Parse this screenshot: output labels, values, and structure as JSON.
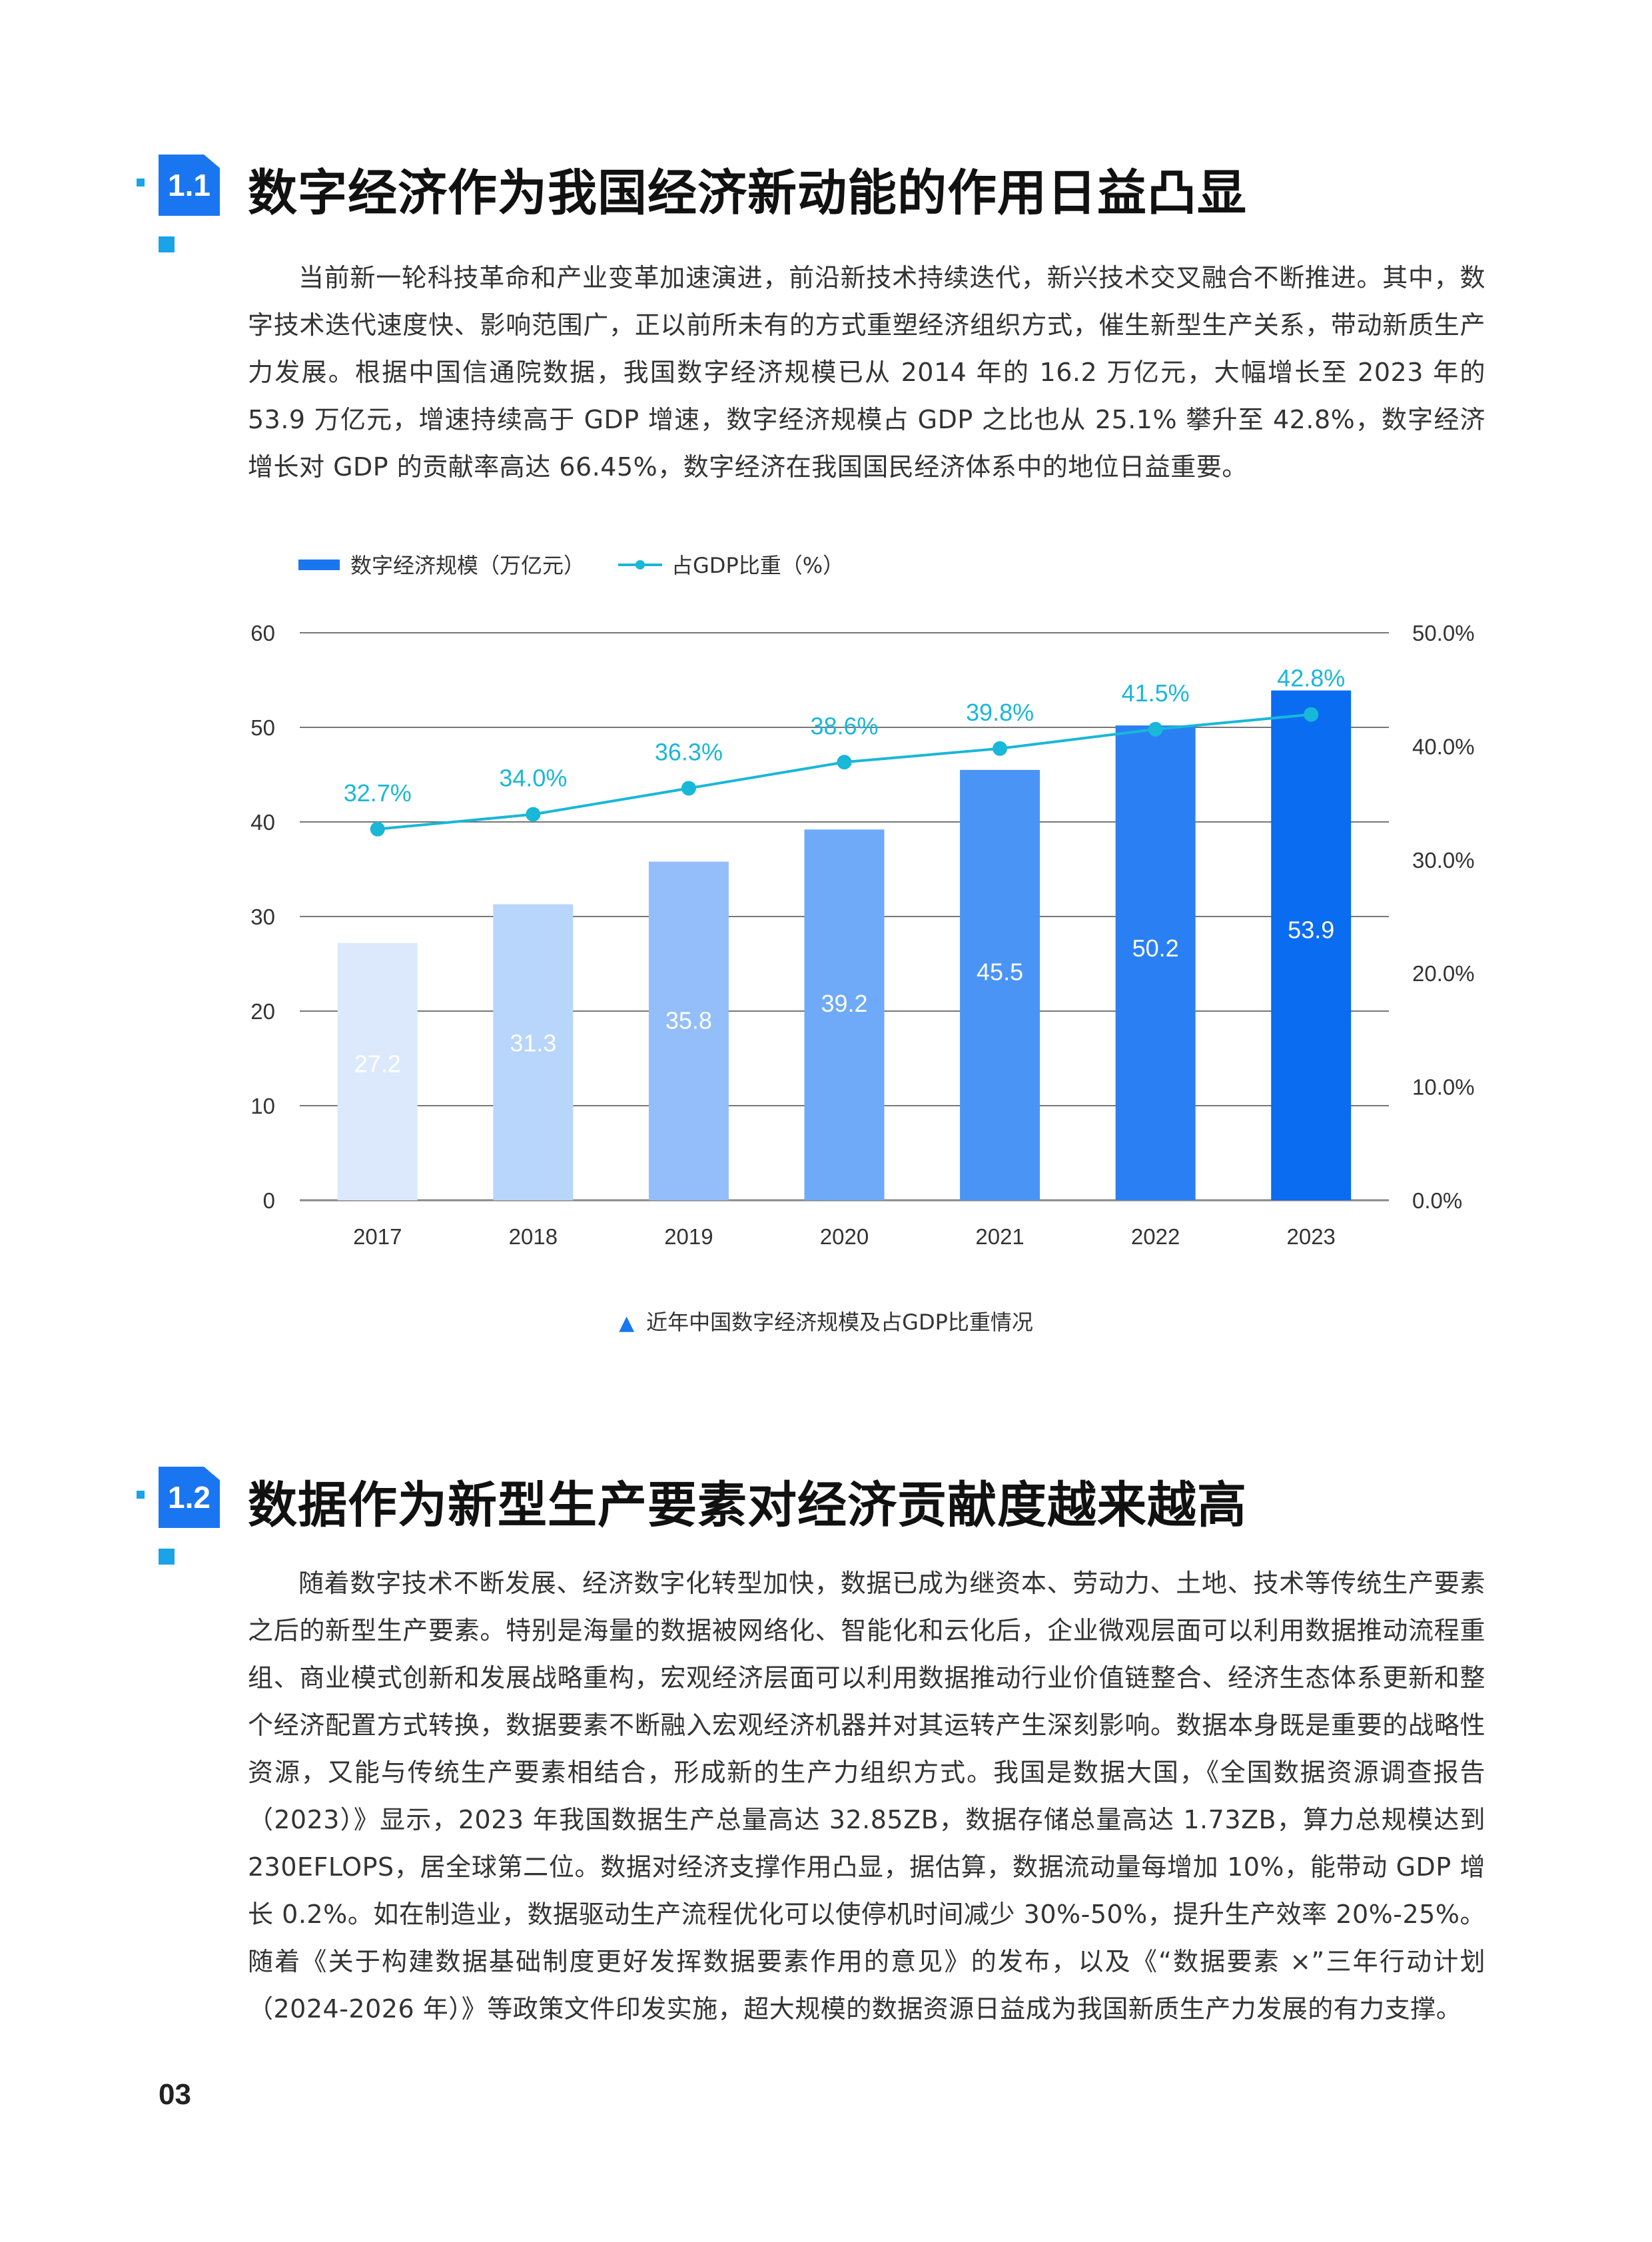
{
  "sections": [
    {
      "number": "1.1",
      "title": "数字经济作为我国经济新动能的作用日益凸显",
      "paragraph": "当前新一轮科技革命和产业变革加速演进，前沿新技术持续迭代，新兴技术交叉融合不断推进。其中，数字技术迭代速度快、影响范围广，正以前所未有的方式重塑经济组织方式，催生新型生产关系，带动新质生产力发展。根据中国信通院数据，我国数字经济规模已从 2014 年的 16.2 万亿元，大幅增长至 2023 年的 53.9 万亿元，增速持续高于 GDP 增速，数字经济规模占 GDP 之比也从 25.1% 攀升至 42.8%，数字经济增长对 GDP 的贡献率高达 66.45%，数字经济在我国国民经济体系中的地位日益重要。"
    },
    {
      "number": "1.2",
      "title": "数据作为新型生产要素对经济贡献度越来越高",
      "paragraph": "随着数字技术不断发展、经济数字化转型加快，数据已成为继资本、劳动力、土地、技术等传统生产要素之后的新型生产要素。特别是海量的数据被网络化、智能化和云化后，企业微观层面可以利用数据推动流程重组、商业模式创新和发展战略重构，宏观经济层面可以利用数据推动行业价值链整合、经济生态体系更新和整个经济配置方式转换，数据要素不断融入宏观经济机器并对其运转产生深刻影响。数据本身既是重要的战略性资源，又能与传统生产要素相结合，形成新的生产力组织方式。我国是数据大国，《全国数据资源调查报告（2023）》显示，2023 年我国数据生产总量高达 32.85ZB，数据存储总量高达 1.73ZB，算力总规模达到 230EFLOPS，居全球第二位。数据对经济支撑作用凸显，据估算，数据流动量每增加 10%，能带动 GDP 增长 0.2%。如在制造业，数据驱动生产流程优化可以使停机时间减少 30%-50%，提升生产效率 20%-25%。随着《关于构建数据基础制度更好发挥数据要素作用的意见》的发布，以及《“数据要素 ×”三年行动计划（2024-2026 年）》等政策文件印发实施，超大规模的数据资源日益成为我国新质生产力发展的有力支撑。"
    }
  ],
  "chart_caption": "近年中国数字经济规模及占GDP比重情况",
  "page_number": "03",
  "chart_data": {
    "type": "bar",
    "categories": [
      "2017",
      "2018",
      "2019",
      "2020",
      "2021",
      "2022",
      "2023"
    ],
    "series": [
      {
        "name": "数字经济规模（万亿元）",
        "type": "bar",
        "axis": "left",
        "values": [
          27.2,
          31.3,
          35.8,
          39.2,
          45.5,
          50.2,
          53.9
        ],
        "labels": [
          "27.2",
          "31.3",
          "35.8",
          "39.2",
          "45.5",
          "50.2",
          "53.9"
        ],
        "colors": [
          "#dce9fc",
          "#b8d5fb",
          "#93befa",
          "#6eaaf8",
          "#4a94f6",
          "#2a80f2",
          "#0a6cf0"
        ]
      },
      {
        "name": "占GDP比重（%）",
        "type": "line",
        "axis": "right",
        "values": [
          32.7,
          34.0,
          36.3,
          38.6,
          39.8,
          41.5,
          42.8
        ],
        "labels": [
          "32.7%",
          "34.0%",
          "36.3%",
          "38.6%",
          "39.8%",
          "41.5%",
          "42.8%"
        ],
        "color": "#19b7d8"
      }
    ],
    "y_left": {
      "min": 0,
      "max": 60,
      "ticks": [
        "0",
        "10",
        "20",
        "30",
        "40",
        "50",
        "60"
      ]
    },
    "y_right": {
      "min": 0,
      "max": 50,
      "ticks": [
        "0.0%",
        "10.0%",
        "20.0%",
        "30.0%",
        "40.0%",
        "50.0%"
      ]
    },
    "grid": true,
    "legend": "top-left",
    "title": ""
  }
}
